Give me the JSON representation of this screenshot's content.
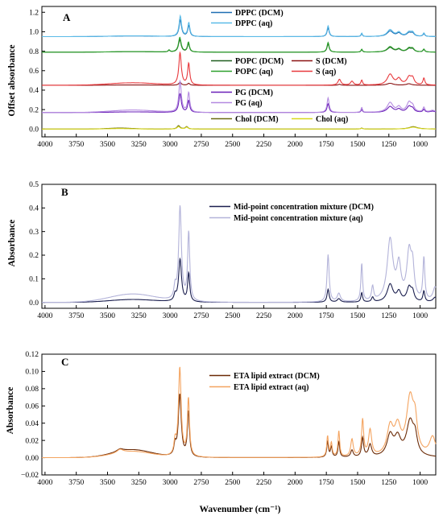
{
  "figure": {
    "x_axis_title": "Wavenumber (cm⁻¹)",
    "x_ticks": [
      4000,
      3750,
      3500,
      3250,
      3000,
      2750,
      2500,
      2250,
      2000,
      1750,
      1500,
      1250,
      1000
    ]
  },
  "chart_data": [
    {
      "type": "line",
      "panel": "A",
      "ylabel": "Offset absorbance",
      "xlim": [
        4025,
        875
      ],
      "ylim": [
        -0.08,
        1.26
      ],
      "yticks": [
        0.0,
        0.2,
        0.4,
        0.6,
        0.8,
        1.0,
        1.2
      ],
      "ytick_labels": [
        "0.0",
        "0.2",
        "0.4",
        "0.6",
        "0.8",
        "1.0",
        "1.2"
      ],
      "legend": [
        {
          "label": "DPPC (DCM)",
          "color": "#1f6fb2"
        },
        {
          "label": "DPPC (aq)",
          "color": "#5bbbe8"
        },
        {
          "label": "POPC (DCM)",
          "color": "#1f5e1f"
        },
        {
          "label": "S (DCM)",
          "color": "#8a1212"
        },
        {
          "label": "POPC (aq)",
          "color": "#2ca02c"
        },
        {
          "label": "S (aq)",
          "color": "#e8383c"
        },
        {
          "label": "PG (DCM)",
          "color": "#6a1fb8"
        },
        {
          "label": "PG (aq)",
          "color": "#b48ae0"
        },
        {
          "label": "Chol (DCM)",
          "color": "#6b6b10"
        },
        {
          "label": "Chol (aq)",
          "color": "#d8d81e"
        }
      ],
      "series": [
        {
          "name": "DPPC (DCM)",
          "color": "#1f6fb2",
          "offset": 0.95,
          "scale": 0.8,
          "broad": [
            [
              3300,
              250,
              0.008
            ]
          ],
          "peaks": [
            [
              2918,
              12,
              0.21
            ],
            [
              2850,
              10,
              0.14
            ],
            [
              1736,
              10,
              0.11
            ],
            [
              1467,
              7,
              0.035
            ],
            [
              1240,
              28,
              0.07
            ],
            [
              1170,
              20,
              0.04
            ],
            [
              1088,
              22,
              0.045
            ],
            [
              1060,
              15,
              0.035
            ],
            [
              970,
              9,
              0.035
            ]
          ]
        },
        {
          "name": "DPPC (aq)",
          "color": "#5bbbe8",
          "offset": 0.95,
          "scale": 1.0,
          "broad": [
            [
              3300,
              250,
              0.008
            ]
          ],
          "peaks": [
            [
              2918,
              12,
              0.21
            ],
            [
              2850,
              10,
              0.14
            ],
            [
              1736,
              10,
              0.11
            ],
            [
              1467,
              7,
              0.035
            ],
            [
              1240,
              28,
              0.07
            ],
            [
              1170,
              20,
              0.04
            ],
            [
              1088,
              22,
              0.045
            ],
            [
              1060,
              15,
              0.035
            ],
            [
              970,
              9,
              0.035
            ]
          ]
        },
        {
          "name": "POPC (DCM)",
          "color": "#1f5e1f",
          "offset": 0.79,
          "scale": 0.85,
          "broad": [
            [
              3300,
              250,
              0.006
            ]
          ],
          "peaks": [
            [
              3008,
              8,
              0.02
            ],
            [
              2922,
              13,
              0.15
            ],
            [
              2853,
              10,
              0.1
            ],
            [
              1736,
              10,
              0.1
            ],
            [
              1467,
              7,
              0.03
            ],
            [
              1240,
              28,
              0.055
            ],
            [
              1170,
              20,
              0.03
            ],
            [
              1088,
              22,
              0.04
            ],
            [
              1060,
              15,
              0.03
            ],
            [
              970,
              9,
              0.03
            ]
          ]
        },
        {
          "name": "POPC (aq)",
          "color": "#2ca02c",
          "offset": 0.79,
          "scale": 1.0,
          "broad": [
            [
              3300,
              250,
              0.006
            ]
          ],
          "peaks": [
            [
              3008,
              8,
              0.02
            ],
            [
              2922,
              13,
              0.15
            ],
            [
              2853,
              10,
              0.1
            ],
            [
              1736,
              10,
              0.1
            ],
            [
              1467,
              7,
              0.03
            ],
            [
              1240,
              28,
              0.055
            ],
            [
              1170,
              20,
              0.03
            ],
            [
              1088,
              22,
              0.04
            ],
            [
              1060,
              15,
              0.03
            ],
            [
              970,
              9,
              0.03
            ]
          ]
        },
        {
          "name": "S (DCM)",
          "color": "#8a1212",
          "offset": 0.45,
          "scale": 1.0,
          "broad": [
            [
              3300,
              250,
              0.003
            ]
          ],
          "peaks": [
            [
              2920,
              12,
              0.03
            ],
            [
              2851,
              10,
              0.02
            ],
            [
              1645,
              12,
              0.01
            ],
            [
              1240,
              30,
              0.02
            ],
            [
              1090,
              25,
              0.015
            ]
          ]
        },
        {
          "name": "S (aq)",
          "color": "#e8383c",
          "offset": 0.45,
          "scale": 1.0,
          "broad": [
            [
              3300,
              260,
              0.025
            ]
          ],
          "peaks": [
            [
              2920,
              12,
              0.33
            ],
            [
              2851,
              10,
              0.22
            ],
            [
              1645,
              14,
              0.06
            ],
            [
              1545,
              14,
              0.04
            ],
            [
              1467,
              8,
              0.05
            ],
            [
              1240,
              28,
              0.11
            ],
            [
              1170,
              20,
              0.06
            ],
            [
              1088,
              22,
              0.08
            ],
            [
              1060,
              15,
              0.06
            ],
            [
              970,
              9,
              0.07
            ]
          ]
        },
        {
          "name": "PG (DCM)",
          "color": "#6a1fb8",
          "offset": 0.17,
          "scale": 0.6,
          "broad": [
            [
              3300,
              250,
              0.01
            ]
          ],
          "peaks": [
            [
              2920,
              12,
              0.32
            ],
            [
              2851,
              10,
              0.2
            ],
            [
              1736,
              10,
              0.15
            ],
            [
              1467,
              7,
              0.05
            ],
            [
              1240,
              28,
              0.1
            ],
            [
              1170,
              20,
              0.05
            ],
            [
              1088,
              22,
              0.1
            ],
            [
              1060,
              15,
              0.05
            ],
            [
              970,
              9,
              0.05
            ],
            [
              900,
              25,
              0.02
            ]
          ]
        },
        {
          "name": "PG (aq)",
          "color": "#b48ae0",
          "offset": 0.17,
          "scale": 1.0,
          "broad": [
            [
              3300,
              250,
              0.025
            ]
          ],
          "peaks": [
            [
              2920,
              12,
              0.32
            ],
            [
              2851,
              10,
              0.2
            ],
            [
              1736,
              10,
              0.15
            ],
            [
              1467,
              7,
              0.05
            ],
            [
              1240,
              28,
              0.1
            ],
            [
              1170,
              20,
              0.05
            ],
            [
              1088,
              22,
              0.1
            ],
            [
              1060,
              15,
              0.05
            ],
            [
              970,
              9,
              0.05
            ],
            [
              900,
              25,
              0.02
            ]
          ]
        },
        {
          "name": "Chol (DCM)",
          "color": "#6b6b10",
          "offset": 0.0,
          "scale": 1.0,
          "broad": [
            [
              3400,
              150,
              0.01
            ]
          ],
          "peaks": [
            [
              2932,
              14,
              0.035
            ],
            [
              2867,
              12,
              0.025
            ],
            [
              1467,
              10,
              0.01
            ],
            [
              1055,
              40,
              0.025
            ]
          ]
        },
        {
          "name": "Chol (aq)",
          "color": "#d8d81e",
          "offset": 0.0,
          "scale": 1.0,
          "broad": [
            [
              3400,
              150,
              0.005
            ]
          ],
          "peaks": [
            [
              2932,
              14,
              0.025
            ],
            [
              2867,
              12,
              0.02
            ],
            [
              1467,
              10,
              0.008
            ],
            [
              1055,
              40,
              0.02
            ]
          ]
        }
      ]
    },
    {
      "type": "line",
      "panel": "B",
      "ylabel": "Absorbance",
      "xlim": [
        4025,
        875
      ],
      "ylim": [
        -0.025,
        0.5
      ],
      "yticks": [
        0.0,
        0.1,
        0.2,
        0.3,
        0.4,
        0.5
      ],
      "ytick_labels": [
        "0.0",
        "0.1",
        "0.2",
        "0.3",
        "0.4",
        "0.5"
      ],
      "legend": [
        {
          "label": "Mid-point concentration mixture (DCM)",
          "color": "#1b1f4f"
        },
        {
          "label": "Mid-point concentration mixture (aq)",
          "color": "#b3b3d9"
        }
      ],
      "series": [
        {
          "name": "Mid-point concentration mixture (DCM)",
          "color": "#1b1f4f",
          "offset": 0.0,
          "scale": 1.0,
          "broad": [
            [
              3300,
              260,
              0.012
            ]
          ],
          "peaks": [
            [
              2920,
              14,
              0.18
            ],
            [
              2851,
              10,
              0.12
            ],
            [
              2960,
              10,
              0.025
            ],
            [
              1736,
              10,
              0.055
            ],
            [
              1650,
              15,
              0.015
            ],
            [
              1467,
              8,
              0.04
            ],
            [
              1380,
              10,
              0.02
            ],
            [
              1240,
              28,
              0.075
            ],
            [
              1170,
              20,
              0.04
            ],
            [
              1088,
              22,
              0.06
            ],
            [
              1060,
              15,
              0.035
            ],
            [
              970,
              9,
              0.045
            ],
            [
              880,
              20,
              0.02
            ]
          ]
        },
        {
          "name": "Mid-point concentration mixture (aq)",
          "color": "#b3b3d9",
          "offset": 0.0,
          "scale": 1.0,
          "broad": [
            [
              3300,
              260,
              0.035
            ]
          ],
          "peaks": [
            [
              2920,
              13,
              0.4
            ],
            [
              2851,
              10,
              0.29
            ],
            [
              2960,
              10,
              0.05
            ],
            [
              1736,
              10,
              0.2
            ],
            [
              1650,
              15,
              0.035
            ],
            [
              1467,
              8,
              0.16
            ],
            [
              1380,
              10,
              0.06
            ],
            [
              1240,
              28,
              0.26
            ],
            [
              1170,
              20,
              0.14
            ],
            [
              1088,
              22,
              0.2
            ],
            [
              1060,
              15,
              0.12
            ],
            [
              970,
              9,
              0.18
            ],
            [
              880,
              20,
              0.06
            ]
          ]
        }
      ]
    },
    {
      "type": "line",
      "panel": "C",
      "ylabel": "Absorbance",
      "xlim": [
        4025,
        875
      ],
      "ylim": [
        -0.02,
        0.12
      ],
      "yticks": [
        -0.02,
        0.0,
        0.02,
        0.04,
        0.06,
        0.08,
        0.1,
        0.12
      ],
      "ytick_labels": [
        "−0.02",
        "0.00",
        "0.02",
        "0.04",
        "0.06",
        "0.08",
        "0.10",
        "0.12"
      ],
      "legend": [
        {
          "label": "ETA lipid extract (DCM)",
          "color": "#6b2a06"
        },
        {
          "label": "ETA lipid extract (aq)",
          "color": "#f4a460"
        }
      ],
      "series": [
        {
          "name": "ETA lipid extract (DCM)",
          "color": "#6b2a06",
          "offset": 0.0,
          "scale": 1.0,
          "broad": [
            [
              3300,
              220,
              0.009
            ]
          ],
          "peaks": [
            [
              3400,
              30,
              0.003
            ],
            [
              2922,
              14,
              0.072
            ],
            [
              2853,
              10,
              0.052
            ],
            [
              2960,
              10,
              0.012
            ],
            [
              1740,
              8,
              0.018
            ],
            [
              1710,
              8,
              0.012
            ],
            [
              1650,
              8,
              0.018
            ],
            [
              1545,
              12,
              0.008
            ],
            [
              1460,
              10,
              0.022
            ],
            [
              1400,
              15,
              0.014
            ],
            [
              1240,
              30,
              0.024
            ],
            [
              1180,
              30,
              0.02
            ],
            [
              1080,
              35,
              0.04
            ],
            [
              1040,
              20,
              0.018
            ]
          ]
        },
        {
          "name": "ETA lipid extract (aq)",
          "color": "#f4a460",
          "offset": 0.0,
          "scale": 1.0,
          "broad": [
            [
              3300,
              220,
              0.007
            ]
          ],
          "peaks": [
            [
              3400,
              30,
              0.004
            ],
            [
              2922,
              13,
              0.103
            ],
            [
              2853,
              10,
              0.067
            ],
            [
              2960,
              10,
              0.015
            ],
            [
              1740,
              8,
              0.024
            ],
            [
              1710,
              8,
              0.016
            ],
            [
              1650,
              8,
              0.03
            ],
            [
              1545,
              12,
              0.02
            ],
            [
              1460,
              10,
              0.042
            ],
            [
              1400,
              15,
              0.03
            ],
            [
              1240,
              30,
              0.032
            ],
            [
              1180,
              30,
              0.03
            ],
            [
              1080,
              35,
              0.066
            ],
            [
              1040,
              20,
              0.03
            ],
            [
              900,
              30,
              0.022
            ]
          ]
        }
      ]
    }
  ]
}
